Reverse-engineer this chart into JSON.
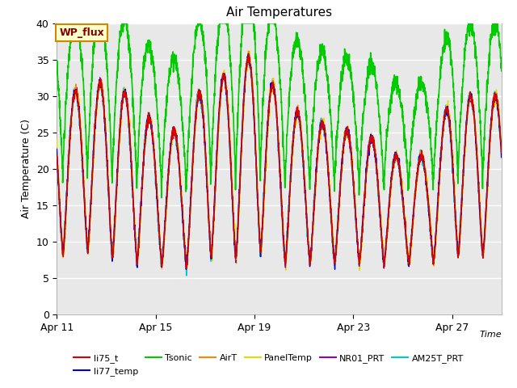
{
  "title": "Air Temperatures",
  "xlabel": "Time",
  "ylabel": "Air Temperature (C)",
  "ylim": [
    0,
    40
  ],
  "xlim_days": [
    0,
    18
  ],
  "x_ticks_days": [
    0,
    4,
    8,
    12,
    16
  ],
  "x_tick_labels": [
    "Apr 11",
    "Apr 15",
    "Apr 19",
    "Apr 23",
    "Apr 27"
  ],
  "yticks": [
    0,
    5,
    10,
    15,
    20,
    25,
    30,
    35,
    40
  ],
  "fig_bg": "#ffffff",
  "plot_bg": "#e8e8e8",
  "series": {
    "li75_t": {
      "color": "#dd0000",
      "lw": 1.0,
      "zorder": 4
    },
    "li77_temp": {
      "color": "#0000dd",
      "lw": 1.0,
      "zorder": 4
    },
    "Tsonic": {
      "color": "#00cc00",
      "lw": 1.2,
      "zorder": 3
    },
    "AirT": {
      "color": "#ff8800",
      "lw": 1.0,
      "zorder": 4
    },
    "PanelTemp": {
      "color": "#dddd00",
      "lw": 1.0,
      "zorder": 4
    },
    "NR01_PRT": {
      "color": "#9900bb",
      "lw": 1.0,
      "zorder": 4
    },
    "AM25T_PRT": {
      "color": "#00cccc",
      "lw": 1.2,
      "zorder": 3
    }
  },
  "annotation_text": "WP_flux",
  "grid_color": "#ffffff",
  "grid_lw": 1.0
}
